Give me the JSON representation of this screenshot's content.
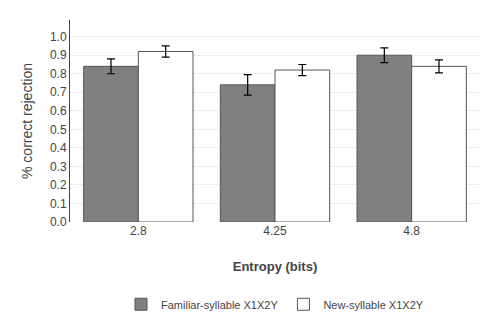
{
  "chart_data": {
    "type": "bar",
    "categories": [
      "2.8",
      "4.25",
      "4.8"
    ],
    "series": [
      {
        "name": "Familiar-syllable X1X2Y",
        "color": "#808080",
        "values": [
          0.84,
          0.74,
          0.9
        ],
        "errors": [
          0.04,
          0.055,
          0.04
        ]
      },
      {
        "name": "New-syllable X1X2Y",
        "color": "#ffffff",
        "values": [
          0.92,
          0.82,
          0.84
        ],
        "errors": [
          0.03,
          0.03,
          0.035
        ]
      }
    ],
    "xlabel": "Entropy (bits)",
    "ylabel": "% correct rejection",
    "ylim": [
      0.0,
      1.09
    ],
    "yticks": [
      {
        "value": 0.0,
        "label": "0.0"
      },
      0.1,
      0.2,
      0.3,
      0.4,
      0.5,
      0.6,
      0.7,
      0.8,
      0.9,
      {
        "value": 1.0,
        "label": "1.0"
      }
    ],
    "grid": true,
    "legend": "bottom"
  }
}
